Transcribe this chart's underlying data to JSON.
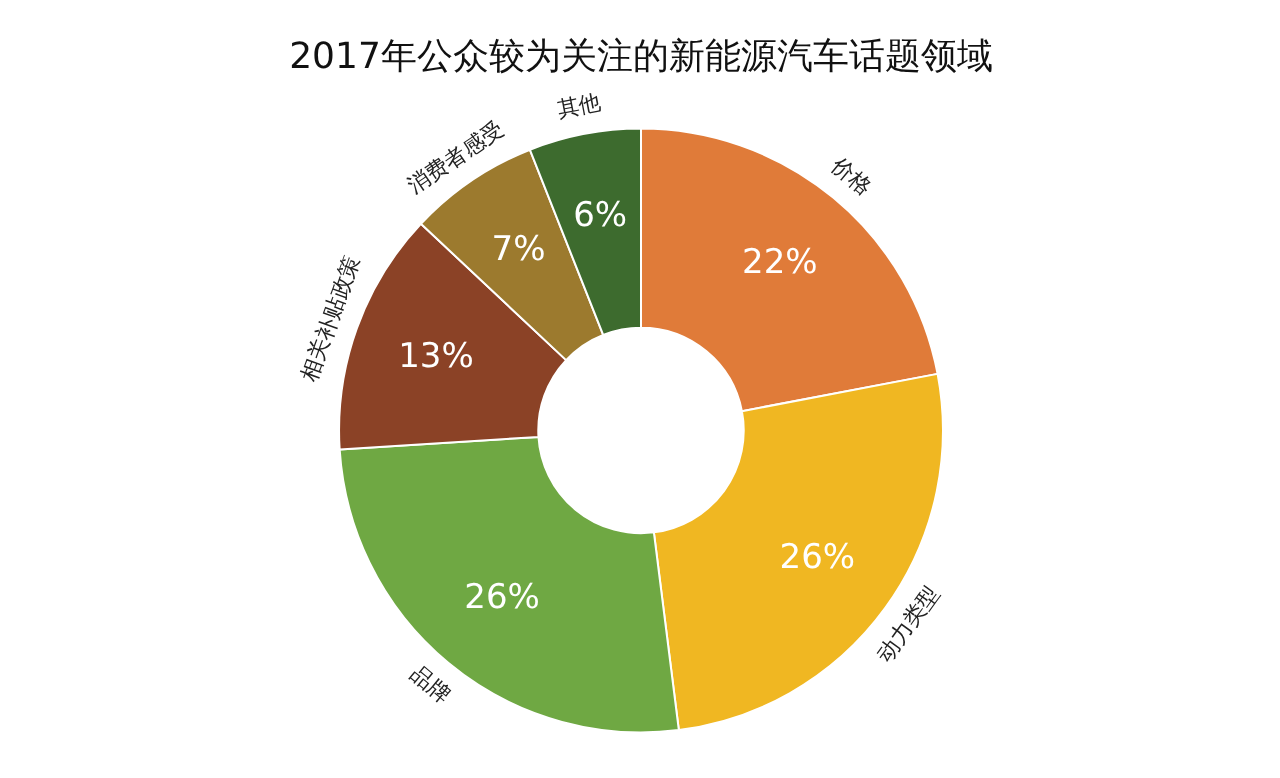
{
  "chart_data": {
    "type": "donut",
    "title": "2017年公众较为关注的新能源汽车话题领域",
    "categories": [
      "价格",
      "动力类型",
      "品牌",
      "相关补贴政策",
      "消费者感受",
      "其他"
    ],
    "values": [
      22,
      26,
      26,
      13,
      7,
      6
    ],
    "value_labels": [
      "22%",
      "26%",
      "26%",
      "13%",
      "7%",
      "6%"
    ],
    "colors": [
      "#e07b39",
      "#f0b722",
      "#6fa843",
      "#8b4226",
      "#9c7a2e",
      "#3d6b2e"
    ]
  }
}
